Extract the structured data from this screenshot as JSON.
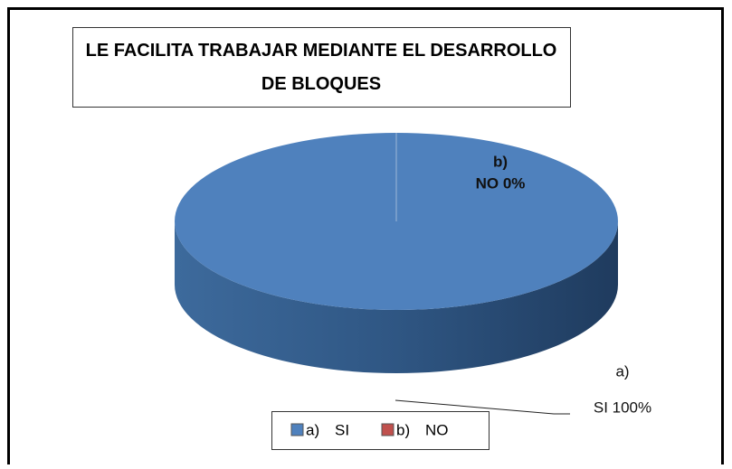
{
  "chart_data": {
    "type": "pie",
    "title": "LE FACILITA TRABAJAR MEDIANTE EL DESARROLLO DE BLOQUES",
    "category_markers": [
      "a)",
      "b)"
    ],
    "categories": [
      "SI",
      "NO"
    ],
    "values": [
      100,
      0
    ],
    "value_labels": [
      "SI 100%",
      "NO 0%"
    ],
    "colors": [
      "#4f81bd",
      "#c0504d"
    ],
    "legend": "bottom",
    "three_d": true
  }
}
